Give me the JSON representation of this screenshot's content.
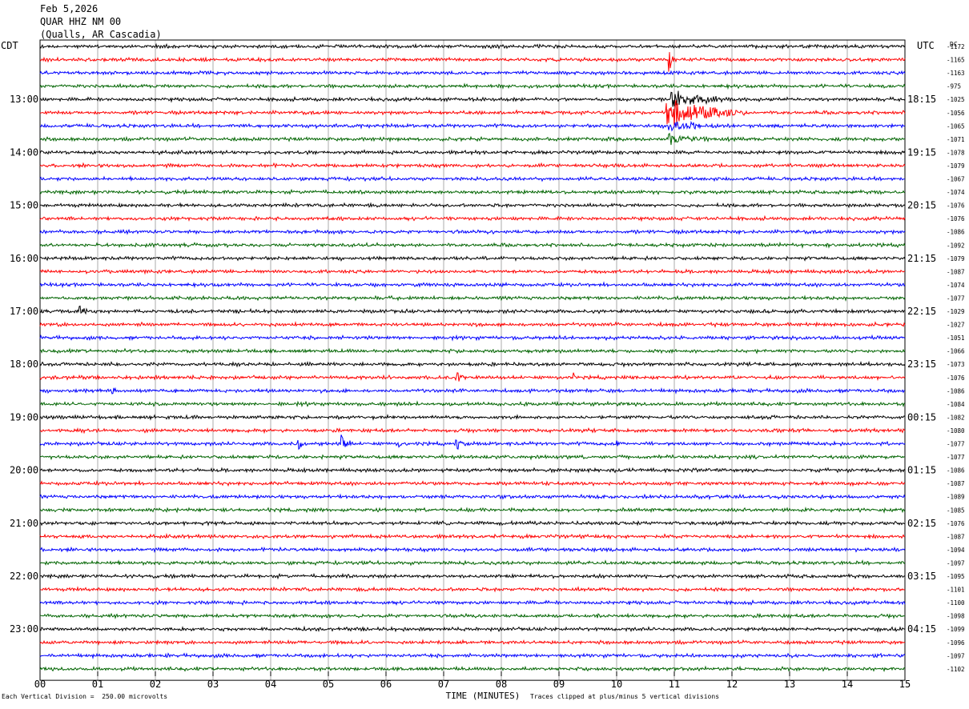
{
  "header": {
    "date": "Feb 5,2026",
    "station": "QUAR HHZ NM 00",
    "location": "(Qualls, AR Cascadia)"
  },
  "footer": {
    "scale_note": "Each Vertical Division =  250.00 microvolts",
    "clip_note": "Traces clipped at plus/minus 5 vertical divisions"
  },
  "colors": {
    "black": "#000000",
    "red": "#ff0000",
    "blue": "#0000ff",
    "green": "#006400",
    "grid": "#000000"
  },
  "chart_data": {
    "type": "line",
    "title": "",
    "left_axis_label": "CDT",
    "right_axis_label": "UTC",
    "dc_label": "DC",
    "xlabel": "TIME (MINUTES)",
    "xlim": [
      0,
      15
    ],
    "x_ticks": [
      "00",
      "01",
      "02",
      "03",
      "04",
      "05",
      "06",
      "07",
      "08",
      "09",
      "10",
      "11",
      "12",
      "13",
      "14",
      "15"
    ],
    "trace_color_cycle": [
      "black",
      "red",
      "blue",
      "green"
    ],
    "left_time_labels": [
      {
        "trace": 4,
        "label": "13:00"
      },
      {
        "trace": 8,
        "label": "14:00"
      },
      {
        "trace": 12,
        "label": "15:00"
      },
      {
        "trace": 16,
        "label": "16:00"
      },
      {
        "trace": 20,
        "label": "17:00"
      },
      {
        "trace": 24,
        "label": "18:00"
      },
      {
        "trace": 28,
        "label": "19:00"
      },
      {
        "trace": 32,
        "label": "20:00"
      },
      {
        "trace": 36,
        "label": "21:00"
      },
      {
        "trace": 40,
        "label": "22:00"
      },
      {
        "trace": 44,
        "label": "23:00"
      }
    ],
    "right_time_labels": [
      {
        "trace": 4,
        "label": "18:15"
      },
      {
        "trace": 8,
        "label": "19:15"
      },
      {
        "trace": 12,
        "label": "20:15"
      },
      {
        "trace": 16,
        "label": "21:15"
      },
      {
        "trace": 20,
        "label": "22:15"
      },
      {
        "trace": 24,
        "label": "23:15"
      },
      {
        "trace": 28,
        "label": "00:15"
      },
      {
        "trace": 32,
        "label": "01:15"
      },
      {
        "trace": 36,
        "label": "02:15"
      },
      {
        "trace": 40,
        "label": "03:15"
      },
      {
        "trace": 44,
        "label": "04:15"
      }
    ],
    "dc_offsets": [
      -1172,
      -1165,
      -1163,
      -975,
      -1025,
      -1056,
      -1065,
      -1071,
      -1078,
      -1079,
      -1067,
      -1074,
      -1076,
      -1076,
      -1086,
      -1092,
      -1079,
      -1087,
      -1074,
      -1077,
      -1029,
      -1027,
      -1051,
      -1066,
      -1073,
      -1076,
      -1086,
      -1084,
      -1082,
      -1080,
      -1077,
      -1077,
      -1086,
      -1087,
      -1089,
      -1085,
      -1076,
      -1087,
      -1094,
      -1097,
      -1095,
      -1101,
      -1100,
      -1098,
      -1099,
      -1096,
      -1097,
      -1102
    ],
    "events": [
      {
        "trace": 5,
        "start_min": 10.85,
        "end_min": 12.3,
        "amplitude": 5,
        "note": "clipped"
      },
      {
        "trace": 4,
        "start_min": 10.9,
        "end_min": 12.0,
        "amplitude": 3
      },
      {
        "trace": 6,
        "start_min": 10.9,
        "end_min": 11.8,
        "amplitude": 2
      },
      {
        "trace": 7,
        "start_min": 10.9,
        "end_min": 11.6,
        "amplitude": 2
      },
      {
        "trace": 1,
        "start_min": 10.9,
        "end_min": 11.0,
        "amplitude": 5
      },
      {
        "trace": 20,
        "start_min": 0.65,
        "end_min": 0.85,
        "amplitude": 2.5
      },
      {
        "trace": 25,
        "start_min": 7.2,
        "end_min": 7.45,
        "amplitude": 2.5
      },
      {
        "trace": 25,
        "start_min": 9.25,
        "end_min": 9.4,
        "amplitude": 1.5
      },
      {
        "trace": 26,
        "start_min": 1.25,
        "end_min": 1.45,
        "amplitude": 2
      },
      {
        "trace": 30,
        "start_min": 4.45,
        "end_min": 4.65,
        "amplitude": 2.5
      },
      {
        "trace": 30,
        "start_min": 5.2,
        "end_min": 5.45,
        "amplitude": 3
      },
      {
        "trace": 30,
        "start_min": 6.2,
        "end_min": 6.35,
        "amplitude": 1.5
      },
      {
        "trace": 30,
        "start_min": 7.2,
        "end_min": 7.45,
        "amplitude": 2.2
      },
      {
        "trace": 30,
        "start_min": 10.0,
        "end_min": 10.1,
        "amplitude": 1.5
      },
      {
        "trace": 43,
        "start_min": 9.6,
        "end_min": 9.75,
        "amplitude": 1.3
      }
    ]
  }
}
